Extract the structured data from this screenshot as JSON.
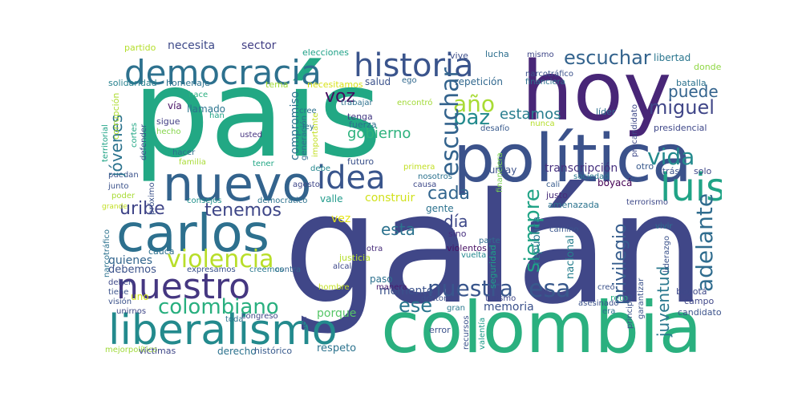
{
  "word_cloud": {
    "words": [
      {
        "text": "galán",
        "color": "#404788"
      },
      {
        "text": "país",
        "color": "#22a884"
      },
      {
        "text": "colombia",
        "color": "#2ab07f"
      },
      {
        "text": "hoy",
        "color": "#482677"
      },
      {
        "text": "política",
        "color": "#3b528b"
      },
      {
        "text": "nuevo",
        "color": "#33638d"
      },
      {
        "text": "carlos",
        "color": "#2d708e"
      },
      {
        "text": "liberalismo",
        "color": "#238a8d"
      },
      {
        "text": "democracia",
        "color": "#2d718e"
      },
      {
        "text": "historia",
        "color": "#3a548c"
      },
      {
        "text": "nuestro",
        "color": "#453781"
      },
      {
        "text": "idea",
        "color": "#39558c"
      },
      {
        "text": "luis",
        "color": "#20a386"
      },
      {
        "text": "violencia",
        "color": "#b8de29"
      },
      {
        "text": "colombiano",
        "color": "#29af7f"
      },
      {
        "text": "nuestra",
        "color": "#39568c"
      },
      {
        "text": "escuchar",
        "color": "#33638d"
      },
      {
        "text": "siempre",
        "color": "#20a386"
      },
      {
        "text": "adelante",
        "color": "#2f6c8e"
      },
      {
        "text": "estado",
        "color": "#33638d"
      },
      {
        "text": "vida",
        "color": "#238a8d"
      },
      {
        "text": "año",
        "color": "#a8db34"
      },
      {
        "text": "esa",
        "color": "#38588c"
      },
      {
        "text": "tenemos",
        "color": "#3f4788"
      },
      {
        "text": "uribe",
        "color": "#404588"
      },
      {
        "text": "privilegio",
        "color": "#365d8d"
      },
      {
        "text": "paz",
        "color": "#238a8d"
      },
      {
        "text": "cada",
        "color": "#32658e"
      },
      {
        "text": "ese",
        "color": "#2a768e"
      },
      {
        "text": "miguel",
        "color": "#404688"
      },
      {
        "text": "puede",
        "color": "#33638d"
      },
      {
        "text": "voz",
        "color": "#460b5e"
      },
      {
        "text": "gobierno",
        "color": "#2db27d"
      },
      {
        "text": "esta",
        "color": "#2c728e"
      },
      {
        "text": "juventud",
        "color": "#2a788e"
      },
      {
        "text": "estamos",
        "color": "#287d8e"
      },
      {
        "text": "jóvenes",
        "color": "#2c738e"
      },
      {
        "text": "día",
        "color": "#3e4989"
      },
      {
        "text": "memoria",
        "color": "#3b518b"
      },
      {
        "text": "momento",
        "color": "#3b528b"
      },
      {
        "text": "vez",
        "color": "#e5e419"
      },
      {
        "text": "construir",
        "color": "#d0e11c"
      },
      {
        "text": "transcripción",
        "color": "#46307e"
      },
      {
        "text": "compromiso",
        "color": "#2c728e"
      },
      {
        "text": "república",
        "color": "#2a768e"
      },
      {
        "text": "nacional",
        "color": "#277f8e"
      },
      {
        "text": "seguridad",
        "color": "#1f9e89"
      },
      {
        "text": "respeto",
        "color": "#2c738e"
      },
      {
        "text": "derecho",
        "color": "#2c728e"
      },
      {
        "text": "histórico",
        "color": "#375a8c"
      },
      {
        "text": "porque",
        "color": "#56c667"
      },
      {
        "text": "quienes",
        "color": "#32658e"
      },
      {
        "text": "debemos",
        "color": "#3b528b"
      },
      {
        "text": "necesita",
        "color": "#3e4a89"
      },
      {
        "text": "sector",
        "color": "#423f85"
      },
      {
        "text": "elecciones",
        "color": "#1fa187"
      },
      {
        "text": "vive",
        "color": "#3d4e8a"
      },
      {
        "text": "lucha",
        "color": "#2e6f8e"
      },
      {
        "text": "mismo",
        "color": "#3f4788"
      },
      {
        "text": "libertad",
        "color": "#2a768e"
      },
      {
        "text": "donde",
        "color": "#8fd744"
      },
      {
        "text": "partido",
        "color": "#b4de2c"
      },
      {
        "text": "solidaridad",
        "color": "#26818e"
      },
      {
        "text": "homenaje",
        "color": "#2c728e"
      },
      {
        "text": "tema",
        "color": "#a0da39"
      },
      {
        "text": "necesitamos",
        "color": "#d8e219"
      },
      {
        "text": "salud",
        "color": "#3b528b"
      },
      {
        "text": "ego",
        "color": "#31688e"
      },
      {
        "text": "repetición",
        "color": "#31688e"
      },
      {
        "text": "batalla",
        "color": "#2c728e"
      },
      {
        "text": "corrupción",
        "color": "#addc30"
      },
      {
        "text": "vía",
        "color": "#471164"
      },
      {
        "text": "llamado",
        "color": "#2b748e"
      },
      {
        "text": "trabajar",
        "color": "#2d718e"
      },
      {
        "text": "encontró",
        "color": "#a2da37"
      },
      {
        "text": "desafío",
        "color": "#37598c"
      },
      {
        "text": "tenga",
        "color": "#443983"
      },
      {
        "text": "fuerza",
        "color": "#2d708e"
      },
      {
        "text": "nunca",
        "color": "#b5de2b"
      },
      {
        "text": "líder",
        "color": "#2e6e8e"
      },
      {
        "text": "presidencial",
        "color": "#3f4889"
      },
      {
        "text": "precandidato",
        "color": "#3e4989"
      },
      {
        "text": "hace",
        "color": "#29af7f"
      },
      {
        "text": "han",
        "color": "#20a386"
      },
      {
        "text": "sigue",
        "color": "#433e85"
      },
      {
        "text": "hecho",
        "color": "#85d54a"
      },
      {
        "text": "usted",
        "color": "#463480"
      },
      {
        "text": "cree",
        "color": "#2c728e"
      },
      {
        "text": "ley",
        "color": "#2e6e8e"
      },
      {
        "text": "hacer",
        "color": "#2e6f8e"
      },
      {
        "text": "familia",
        "color": "#a8db34"
      },
      {
        "text": "tener",
        "color": "#22a785"
      },
      {
        "text": "debe",
        "color": "#24878e"
      },
      {
        "text": "futuro",
        "color": "#3b528b"
      },
      {
        "text": "primera",
        "color": "#c2df23"
      },
      {
        "text": "nosotros",
        "color": "#2c728e"
      },
      {
        "text": "causa",
        "color": "#3e4989"
      },
      {
        "text": "turbay",
        "color": "#3b518b"
      },
      {
        "text": "otro",
        "color": "#38598c"
      },
      {
        "text": "atrás",
        "color": "#3b528b"
      },
      {
        "text": "solo",
        "color": "#3f4788"
      },
      {
        "text": "sociedad",
        "color": "#2a788e"
      },
      {
        "text": "cali",
        "color": "#375b8d"
      },
      {
        "text": "causa",
        "color": "#3f4788"
      },
      {
        "text": "boyacá",
        "color": "#440154"
      },
      {
        "text": "justo",
        "color": "#472c7a"
      },
      {
        "text": "amenazada",
        "color": "#2c738e"
      },
      {
        "text": "terrorismo",
        "color": "#3e4989"
      },
      {
        "text": "puedan",
        "color": "#3b528b"
      },
      {
        "text": "junto",
        "color": "#3b528b"
      },
      {
        "text": "poder",
        "color": "#a8db34"
      },
      {
        "text": "grande",
        "color": "#c2df23"
      },
      {
        "text": "agosto",
        "color": "#3f4788"
      },
      {
        "text": "consejos",
        "color": "#21918c"
      },
      {
        "text": "democrático",
        "color": "#2c728e"
      },
      {
        "text": "valle",
        "color": "#1f9a8a"
      },
      {
        "text": "gente",
        "color": "#2c728e"
      },
      {
        "text": "sino",
        "color": "#462f7f"
      },
      {
        "text": "parte",
        "color": "#2f6c8e"
      },
      {
        "text": "camino",
        "color": "#39568c"
      },
      {
        "text": "vivir",
        "color": "#2c728e"
      },
      {
        "text": "cauca",
        "color": "#2d708e"
      },
      {
        "text": "otra",
        "color": "#472c7a"
      },
      {
        "text": "justicia",
        "color": "#b5de2b"
      },
      {
        "text": "violentos",
        "color": "#471063"
      },
      {
        "text": "vuelta",
        "color": "#23888e"
      },
      {
        "text": "contra",
        "color": "#32658e"
      },
      {
        "text": "creemos",
        "color": "#2a788e"
      },
      {
        "text": "expresamos",
        "color": "#3b528b"
      },
      {
        "text": "paso",
        "color": "#2d718e"
      },
      {
        "text": "creo",
        "color": "#3b528b"
      },
      {
        "text": "manera",
        "color": "#481a6c"
      },
      {
        "text": "hombre",
        "color": "#c2df23"
      },
      {
        "text": "reto",
        "color": "#29af7f"
      },
      {
        "text": "campo",
        "color": "#3f4788"
      },
      {
        "text": "bogotá",
        "color": "#3e4989"
      },
      {
        "text": "garantizar",
        "color": "#3b528b"
      },
      {
        "text": "liderazgo",
        "color": "#3b528b"
      },
      {
        "text": "principio",
        "color": "#3b528b"
      },
      {
        "text": "candidato",
        "color": "#3b528b"
      },
      {
        "text": "era",
        "color": "#2c728e"
      },
      {
        "text": "asesinado",
        "color": "#3b528b"
      },
      {
        "text": "turismo",
        "color": "#3f4788"
      },
      {
        "text": "doctor",
        "color": "#3b528b"
      },
      {
        "text": "alcalde",
        "color": "#3e4989"
      },
      {
        "text": "gran",
        "color": "#2a788e"
      },
      {
        "text": "deben",
        "color": "#3e4989"
      },
      {
        "text": "tiene",
        "color": "#3b528b"
      },
      {
        "text": "visión",
        "color": "#3b528b"
      },
      {
        "text": "unirnos",
        "color": "#3f4788"
      },
      {
        "text": "uno",
        "color": "#d0e11c"
      },
      {
        "text": "congreso",
        "color": "#3f4788"
      },
      {
        "text": "toda",
        "color": "#2c728e"
      },
      {
        "text": "sea",
        "color": "#3f4788"
      },
      {
        "text": "error",
        "color": "#3b528b"
      },
      {
        "text": "recursos",
        "color": "#3b528b"
      },
      {
        "text": "valentía",
        "color": "#1f9a8a"
      },
      {
        "text": "próximo",
        "color": "#a0da39"
      },
      {
        "text": "mejorpolítico",
        "color": "#3f4788"
      },
      {
        "text": "víctimas",
        "color": "#3b528b"
      },
      {
        "text": "territorial",
        "color": "#20a386"
      },
      {
        "text": "defender",
        "color": "#3b528b"
      },
      {
        "text": "cortes",
        "color": "#22a785"
      },
      {
        "text": "generación",
        "color": "#2e6f8e"
      },
      {
        "text": "importante",
        "color": "#c2df23"
      },
      {
        "text": "narcotráfico",
        "color": "#2c728e"
      },
      {
        "text": "financiera",
        "color": "#7ad151"
      },
      {
        "text": "miedo",
        "color": "#3b528b"
      },
      {
        "text": "buena",
        "color": "#2c728e"
      }
    ]
  }
}
